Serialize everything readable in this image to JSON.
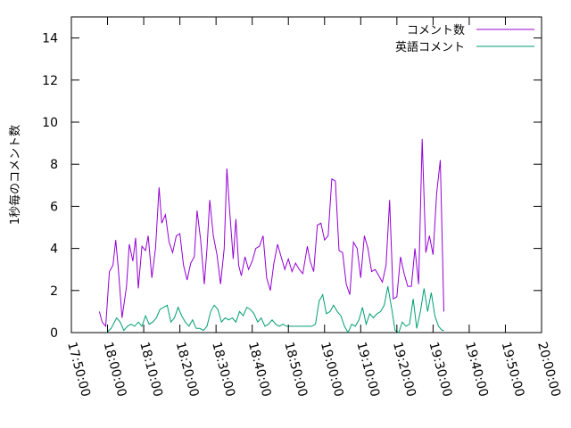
{
  "chart_data": {
    "type": "line",
    "title": "",
    "xlabel": "",
    "ylabel": "1秒毎のコメント数",
    "xlim": [
      "17:50:00",
      "20:00:00"
    ],
    "ylim": [
      0,
      15
    ],
    "xticks": [
      "17:50:00",
      "18:00:00",
      "18:10:00",
      "18:20:00",
      "18:30:00",
      "18:40:00",
      "18:50:00",
      "19:00:00",
      "19:10:00",
      "19:20:00",
      "19:30:00",
      "19:40:00",
      "19:50:00",
      "20:00:00"
    ],
    "yticks": [
      0,
      2,
      4,
      6,
      8,
      10,
      12,
      14
    ],
    "grid": false,
    "legend_position": "top-right",
    "series": [
      {
        "name": "コメント数",
        "color": "#9400d3",
        "points": [
          [
            "17:57:45",
            1.0
          ],
          [
            "17:58:30",
            0.5
          ],
          [
            "17:59:30",
            0.3
          ],
          [
            "18:00:30",
            2.9
          ],
          [
            "18:01:30",
            3.2
          ],
          [
            "18:02:15",
            4.4
          ],
          [
            "18:03:00",
            3.0
          ],
          [
            "18:04:00",
            0.7
          ],
          [
            "18:05:15",
            2.2
          ],
          [
            "18:06:00",
            4.2
          ],
          [
            "18:07:00",
            3.4
          ],
          [
            "18:07:45",
            4.5
          ],
          [
            "18:08:30",
            2.1
          ],
          [
            "18:09:30",
            4.1
          ],
          [
            "18:10:30",
            3.9
          ],
          [
            "18:11:15",
            4.6
          ],
          [
            "18:12:15",
            2.6
          ],
          [
            "18:13:15",
            4.0
          ],
          [
            "18:14:15",
            6.9
          ],
          [
            "18:15:00",
            5.2
          ],
          [
            "18:16:00",
            5.6
          ],
          [
            "18:17:00",
            4.3
          ],
          [
            "18:18:00",
            3.8
          ],
          [
            "18:19:00",
            4.6
          ],
          [
            "18:20:00",
            4.7
          ],
          [
            "18:21:00",
            3.2
          ],
          [
            "18:22:00",
            2.5
          ],
          [
            "18:23:00",
            3.3
          ],
          [
            "18:24:00",
            3.6
          ],
          [
            "18:24:45",
            5.8
          ],
          [
            "18:25:45",
            4.4
          ],
          [
            "18:26:45",
            2.3
          ],
          [
            "18:27:30",
            4.0
          ],
          [
            "18:28:15",
            6.3
          ],
          [
            "18:29:15",
            4.6
          ],
          [
            "18:30:15",
            3.7
          ],
          [
            "18:31:15",
            2.3
          ],
          [
            "18:32:15",
            4.0
          ],
          [
            "18:33:00",
            7.8
          ],
          [
            "18:33:45",
            5.8
          ],
          [
            "18:34:45",
            3.5
          ],
          [
            "18:35:30",
            5.4
          ],
          [
            "18:36:15",
            3.2
          ],
          [
            "18:37:00",
            2.7
          ],
          [
            "18:38:00",
            3.6
          ],
          [
            "18:39:00",
            3.0
          ],
          [
            "18:40:00",
            3.4
          ],
          [
            "18:41:00",
            4.0
          ],
          [
            "18:42:00",
            4.1
          ],
          [
            "18:43:00",
            4.6
          ],
          [
            "18:44:00",
            2.6
          ],
          [
            "18:45:00",
            2.0
          ],
          [
            "18:46:00",
            3.3
          ],
          [
            "18:47:00",
            4.2
          ],
          [
            "18:48:00",
            3.6
          ],
          [
            "18:49:00",
            3.0
          ],
          [
            "18:50:00",
            3.5
          ],
          [
            "18:51:00",
            2.9
          ],
          [
            "18:52:00",
            3.3
          ],
          [
            "18:53:00",
            3.0
          ],
          [
            "18:54:00",
            2.8
          ],
          [
            "18:55:15",
            4.1
          ],
          [
            "18:56:00",
            3.4
          ],
          [
            "18:57:00",
            2.9
          ],
          [
            "18:58:00",
            5.1
          ],
          [
            "18:59:00",
            5.2
          ],
          [
            "19:00:00",
            4.4
          ],
          [
            "19:01:00",
            4.6
          ],
          [
            "19:02:00",
            7.3
          ],
          [
            "19:03:00",
            7.2
          ],
          [
            "19:04:00",
            3.9
          ],
          [
            "19:05:00",
            3.8
          ],
          [
            "19:06:00",
            2.3
          ],
          [
            "19:07:00",
            1.8
          ],
          [
            "19:08:00",
            4.3
          ],
          [
            "19:09:00",
            4.0
          ],
          [
            "19:10:00",
            2.6
          ],
          [
            "19:11:00",
            4.6
          ],
          [
            "19:12:00",
            4.0
          ],
          [
            "19:13:00",
            2.9
          ],
          [
            "19:14:00",
            3.0
          ],
          [
            "19:15:00",
            2.7
          ],
          [
            "19:16:00",
            2.4
          ],
          [
            "19:17:00",
            3.2
          ],
          [
            "19:18:00",
            6.3
          ],
          [
            "19:19:00",
            1.6
          ],
          [
            "19:20:00",
            1.7
          ],
          [
            "19:21:00",
            3.6
          ],
          [
            "19:22:00",
            2.8
          ],
          [
            "19:23:00",
            2.2
          ],
          [
            "19:24:00",
            2.2
          ],
          [
            "19:25:00",
            4.0
          ],
          [
            "19:26:00",
            2.3
          ],
          [
            "19:27:00",
            9.2
          ],
          [
            "19:28:00",
            3.8
          ],
          [
            "19:29:00",
            4.6
          ],
          [
            "19:30:00",
            3.7
          ],
          [
            "19:31:00",
            6.6
          ],
          [
            "19:32:00",
            8.2
          ],
          [
            "19:33:00",
            1.0
          ]
        ]
      },
      {
        "name": "英語コメント",
        "color": "#009e73",
        "points": [
          [
            "17:59:45",
            0.0
          ],
          [
            "18:01:00",
            0.2
          ],
          [
            "18:02:30",
            0.7
          ],
          [
            "18:03:30",
            0.5
          ],
          [
            "18:04:30",
            0.1
          ],
          [
            "18:05:30",
            0.3
          ],
          [
            "18:06:30",
            0.4
          ],
          [
            "18:07:30",
            0.3
          ],
          [
            "18:08:30",
            0.5
          ],
          [
            "18:09:30",
            0.3
          ],
          [
            "18:10:30",
            0.8
          ],
          [
            "18:11:30",
            0.4
          ],
          [
            "18:12:30",
            0.5
          ],
          [
            "18:13:30",
            0.7
          ],
          [
            "18:14:30",
            1.1
          ],
          [
            "18:15:30",
            1.2
          ],
          [
            "18:16:30",
            1.3
          ],
          [
            "18:17:30",
            0.5
          ],
          [
            "18:18:30",
            0.7
          ],
          [
            "18:19:30",
            1.2
          ],
          [
            "18:20:30",
            0.8
          ],
          [
            "18:21:30",
            0.5
          ],
          [
            "18:22:30",
            0.3
          ],
          [
            "18:23:30",
            0.6
          ],
          [
            "18:24:30",
            0.2
          ],
          [
            "18:25:30",
            0.2
          ],
          [
            "18:26:30",
            0.1
          ],
          [
            "18:27:30",
            0.3
          ],
          [
            "18:28:30",
            1.0
          ],
          [
            "18:29:30",
            1.3
          ],
          [
            "18:30:30",
            1.1
          ],
          [
            "18:31:30",
            0.5
          ],
          [
            "18:32:30",
            0.7
          ],
          [
            "18:33:30",
            0.6
          ],
          [
            "18:34:30",
            0.7
          ],
          [
            "18:35:30",
            0.5
          ],
          [
            "18:36:30",
            1.0
          ],
          [
            "18:37:30",
            0.8
          ],
          [
            "18:38:30",
            1.2
          ],
          [
            "18:39:30",
            1.1
          ],
          [
            "18:40:30",
            0.9
          ],
          [
            "18:41:30",
            0.5
          ],
          [
            "18:42:30",
            0.7
          ],
          [
            "18:43:30",
            0.3
          ],
          [
            "18:44:30",
            0.4
          ],
          [
            "18:45:30",
            0.6
          ],
          [
            "18:46:30",
            0.4
          ],
          [
            "18:47:30",
            0.3
          ],
          [
            "18:48:30",
            0.4
          ],
          [
            "18:49:30",
            0.3
          ],
          [
            "18:50:30",
            0.3
          ],
          [
            "18:51:30",
            0.3
          ],
          [
            "18:52:30",
            0.3
          ],
          [
            "18:53:30",
            0.3
          ],
          [
            "18:54:30",
            0.3
          ],
          [
            "18:55:30",
            0.3
          ],
          [
            "18:56:30",
            0.3
          ],
          [
            "18:57:30",
            0.4
          ],
          [
            "18:58:30",
            1.5
          ],
          [
            "18:59:30",
            1.8
          ],
          [
            "19:00:30",
            0.9
          ],
          [
            "19:01:30",
            1.0
          ],
          [
            "19:02:30",
            1.3
          ],
          [
            "19:03:30",
            1.0
          ],
          [
            "19:04:30",
            0.8
          ],
          [
            "19:05:30",
            0.3
          ],
          [
            "19:06:30",
            0.0
          ],
          [
            "19:07:30",
            0.4
          ],
          [
            "19:08:30",
            0.3
          ],
          [
            "19:09:30",
            0.6
          ],
          [
            "19:10:30",
            1.2
          ],
          [
            "19:11:30",
            0.4
          ],
          [
            "19:12:30",
            0.9
          ],
          [
            "19:13:30",
            0.7
          ],
          [
            "19:14:30",
            0.9
          ],
          [
            "19:15:30",
            1.0
          ],
          [
            "19:16:30",
            1.3
          ],
          [
            "19:17:30",
            2.2
          ],
          [
            "19:18:30",
            1.2
          ],
          [
            "19:19:30",
            0.1
          ],
          [
            "19:20:30",
            0.0
          ],
          [
            "19:21:30",
            0.5
          ],
          [
            "19:22:30",
            0.3
          ],
          [
            "19:23:30",
            0.4
          ],
          [
            "19:24:30",
            1.6
          ],
          [
            "19:25:30",
            0.2
          ],
          [
            "19:26:30",
            1.0
          ],
          [
            "19:27:30",
            2.1
          ],
          [
            "19:28:30",
            1.0
          ],
          [
            "19:29:30",
            1.9
          ],
          [
            "19:30:30",
            0.8
          ],
          [
            "19:31:30",
            0.3
          ],
          [
            "19:32:30",
            0.1
          ],
          [
            "19:33:00",
            0.1
          ]
        ]
      }
    ]
  }
}
